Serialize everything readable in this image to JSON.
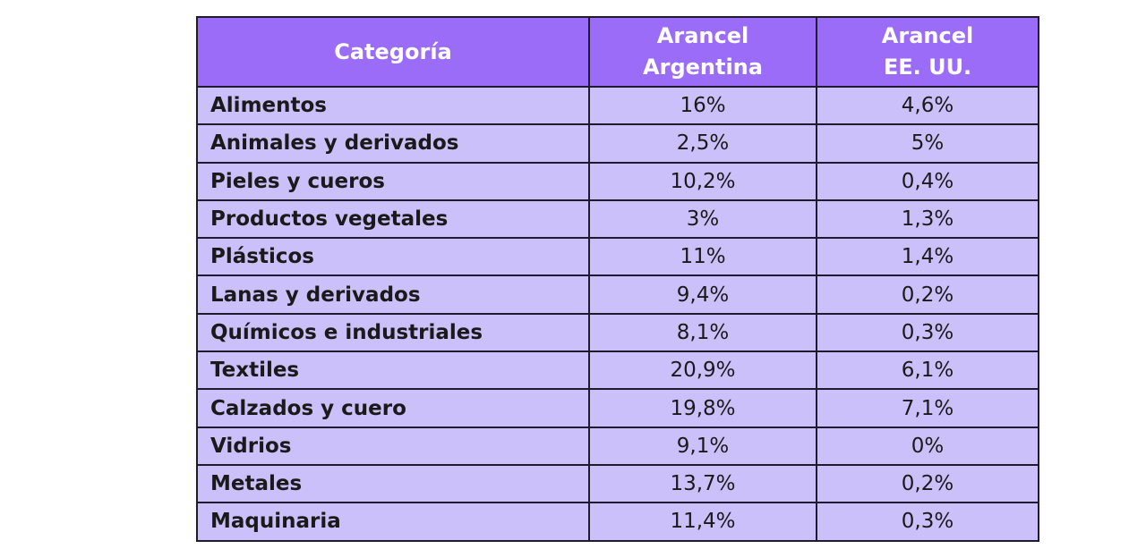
{
  "table": {
    "headers": {
      "category": "Categoría",
      "argentina": [
        "Arancel",
        "Argentina"
      ],
      "usa": [
        "Arancel",
        "EE. UU."
      ]
    },
    "rows": [
      {
        "category": "Alimentos",
        "argentina": "16%",
        "usa": "4,6%"
      },
      {
        "category": "Animales y derivados",
        "argentina": "2,5%",
        "usa": "5%"
      },
      {
        "category": "Pieles y cueros",
        "argentina": "10,2%",
        "usa": "0,4%"
      },
      {
        "category": "Productos vegetales",
        "argentina": "3%",
        "usa": "1,3%"
      },
      {
        "category": "Plásticos",
        "argentina": "11%",
        "usa": "1,4%"
      },
      {
        "category": "Lanas y derivados",
        "argentina": "9,4%",
        "usa": "0,2%"
      },
      {
        "category": "Químicos e industriales",
        "argentina": "8,1%",
        "usa": "0,3%"
      },
      {
        "category": "Textiles",
        "argentina": "20,9%",
        "usa": "6,1%"
      },
      {
        "category": "Calzados y cuero",
        "argentina": "19,8%",
        "usa": "7,1%"
      },
      {
        "category": "Vidrios",
        "argentina": "9,1%",
        "usa": "0%"
      },
      {
        "category": "Metales",
        "argentina": "13,7%",
        "usa": "0,2%"
      },
      {
        "category": "Maquinaria",
        "argentina": "11,4%",
        "usa": "0,3%"
      }
    ]
  },
  "colors": {
    "header_bg": "#9b6cf7",
    "cell_bg": "#ccc0fa",
    "border": "#1f1b2e"
  }
}
